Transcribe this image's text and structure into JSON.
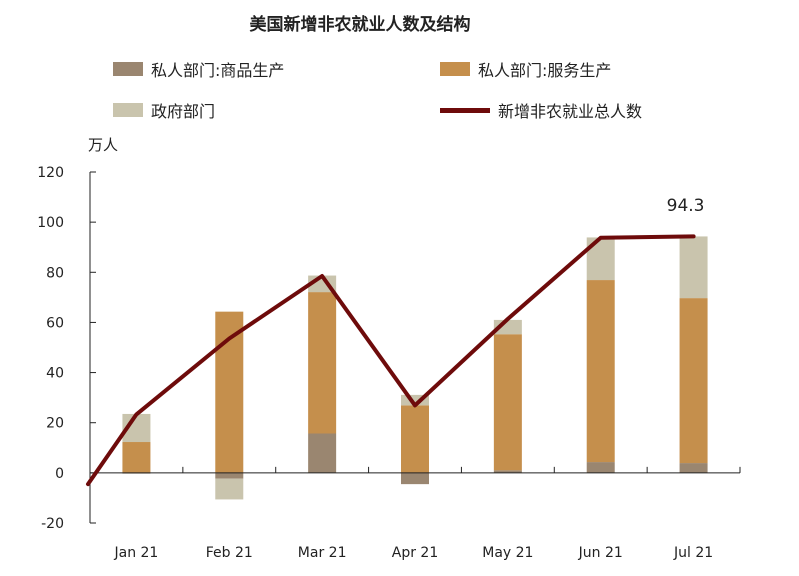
{
  "chart_data": {
    "type": "bar",
    "title": "美国新增非农就业人数及结构",
    "unit_label": "万人",
    "categories": [
      "Jan 21",
      "Feb 21",
      "Mar 21",
      "Apr 21",
      "May 21",
      "Jun 21",
      "Jul 21"
    ],
    "series": [
      {
        "name": "私人部门:商品生产",
        "values": [
          -0.3,
          -2.3,
          15.7,
          -4.5,
          1.0,
          4.3,
          3.9
        ],
        "color": "#9a8670",
        "kind": "stacked-bar"
      },
      {
        "name": "私人部门:服务生产",
        "values": [
          12.3,
          64.3,
          56.4,
          26.9,
          54.3,
          72.6,
          65.8
        ],
        "color": "#c58f4c",
        "kind": "stacked-bar"
      },
      {
        "name": "政府部门",
        "values": [
          11.2,
          -8.3,
          6.6,
          4.2,
          5.7,
          17.0,
          24.6
        ],
        "color": "#c9c4ad",
        "kind": "stacked-bar"
      },
      {
        "name": "新增非农就业总人数",
        "values": [
          23.3,
          53.6,
          78.5,
          26.9,
          61.4,
          93.8,
          94.3
        ],
        "color": "#6e0b0b",
        "kind": "line"
      }
    ],
    "annotations": [
      {
        "category": "Jul 21",
        "text": "94.3"
      }
    ],
    "y_ticks": [
      "120",
      "100",
      "80",
      "60",
      "40",
      "20",
      "0",
      "-20"
    ],
    "ylim": [
      -20,
      120
    ],
    "grid": false,
    "legend_position": "top"
  }
}
